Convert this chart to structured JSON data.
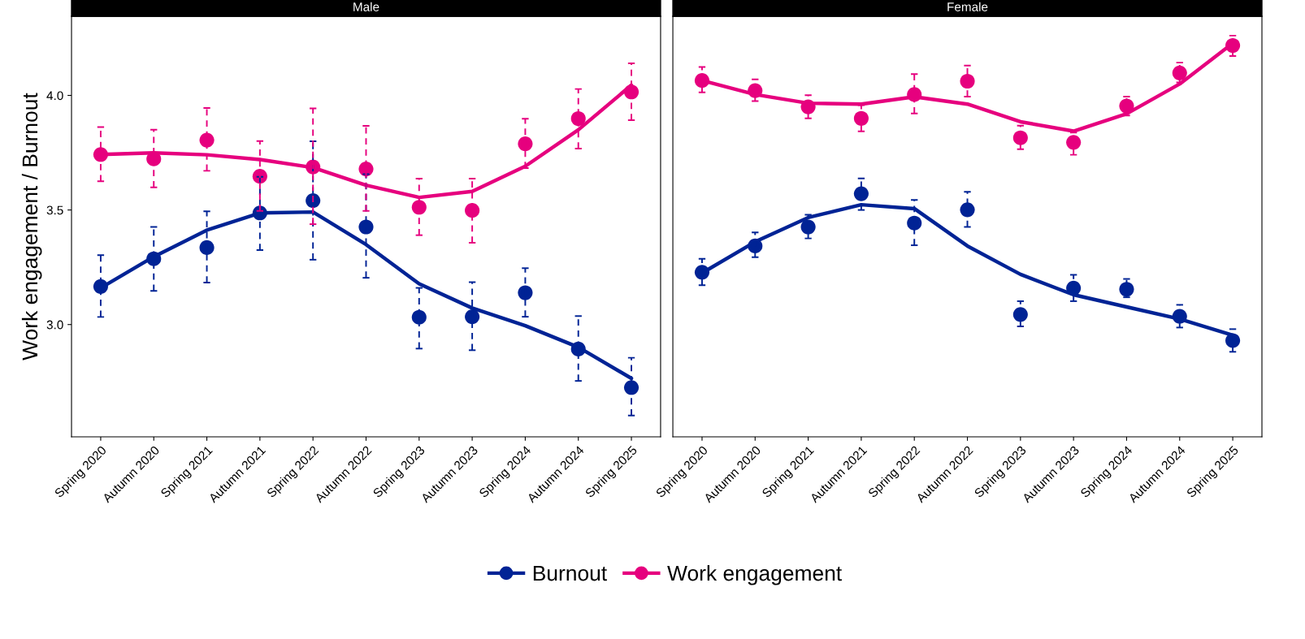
{
  "chart_data": [
    {
      "type": "scatter",
      "title": "Male",
      "ylabel": "Work engagement / Burnout",
      "legend": "bottom",
      "marker": "circle",
      "categories": [
        "Spring 2020",
        "Autumn 2020",
        "Spring 2021",
        "Autumn 2021",
        "Spring 2022",
        "Autumn 2022",
        "Spring 2023",
        "Autumn 2023",
        "Spring 2024",
        "Autumn 2024",
        "Spring 2025"
      ],
      "ylim": [
        2.51,
        4.345
      ],
      "yticks": [
        {
          "value": 3,
          "label": "3.0"
        },
        {
          "value": 3.5,
          "label": "3.5"
        },
        {
          "value": 4,
          "label": "4.0"
        }
      ],
      "series": [
        {
          "name": "Burnout",
          "color": "#002395",
          "line_style": "dashed",
          "values": [
            3.166,
            3.287,
            3.336,
            3.487,
            3.541,
            3.426,
            3.032,
            3.034,
            3.139,
            2.893,
            2.725
          ],
          "errors": [
            [
              3.033,
              3.303
            ],
            [
              3.147,
              3.426
            ],
            [
              3.183,
              3.494
            ],
            [
              3.325,
              3.645
            ],
            [
              3.283,
              3.8
            ],
            [
              3.204,
              3.656
            ],
            [
              2.895,
              3.16
            ],
            [
              2.888,
              3.185
            ],
            [
              3.034,
              3.246
            ],
            [
              2.754,
              3.037
            ],
            [
              2.603,
              2.855
            ]
          ]
        },
        {
          "name": "Work engagement",
          "color": "#e6007e",
          "line_style": "dashed",
          "values": [
            3.742,
            3.723,
            3.805,
            3.647,
            3.688,
            3.679,
            3.512,
            3.498,
            3.789,
            3.899,
            4.015
          ],
          "errors": [
            [
              3.625,
              3.862
            ],
            [
              3.599,
              3.85
            ],
            [
              3.671,
              3.945
            ],
            [
              3.496,
              3.801
            ],
            [
              3.438,
              3.943
            ],
            [
              3.496,
              3.867
            ],
            [
              3.39,
              3.637
            ],
            [
              3.357,
              3.637
            ],
            [
              3.683,
              3.898
            ],
            [
              3.768,
              4.028
            ],
            [
              3.892,
              4.14
            ]
          ]
        },
        {
          "type": "line",
          "marker": "none",
          "color": "#002395",
          "values": [
            3.16,
            3.296,
            3.412,
            3.487,
            3.491,
            3.349,
            3.178,
            3.072,
            2.995,
            2.901,
            2.765
          ]
        },
        {
          "type": "line",
          "marker": "none",
          "color": "#e6007e",
          "values": [
            3.742,
            3.749,
            3.741,
            3.72,
            3.685,
            3.608,
            3.555,
            3.581,
            3.691,
            3.85,
            4.045
          ]
        }
      ]
    },
    {
      "type": "scatter",
      "title": "Female",
      "tick_labels": "x",
      "marker": "circle",
      "categories": [
        "Spring 2020",
        "Autumn 2020",
        "Spring 2021",
        "Autumn 2021",
        "Spring 2022",
        "Autumn 2022",
        "Spring 2023",
        "Autumn 2023",
        "Spring 2024",
        "Autumn 2024",
        "Spring 2025"
      ],
      "ylim": [
        2.51,
        4.345
      ],
      "series": [
        {
          "color": "#002395",
          "line_style": "dashed",
          "values": [
            3.228,
            3.343,
            3.426,
            3.571,
            3.443,
            3.501,
            3.044,
            3.159,
            3.154,
            3.036,
            2.93
          ],
          "errors": [
            [
              3.172,
              3.287
            ],
            [
              3.294,
              3.402
            ],
            [
              3.376,
              3.479
            ],
            [
              3.5,
              3.638
            ],
            [
              3.346,
              3.544
            ],
            [
              3.426,
              3.579
            ],
            [
              2.992,
              3.102
            ],
            [
              3.102,
              3.217
            ],
            [
              3.119,
              3.199
            ],
            [
              2.987,
              3.086
            ],
            [
              2.881,
              2.98
            ]
          ]
        },
        {
          "color": "#e6007e",
          "line_style": "dashed",
          "values": [
            4.065,
            4.021,
            3.95,
            3.9,
            4.004,
            4.062,
            3.815,
            3.795,
            3.954,
            4.098,
            4.218
          ],
          "errors": [
            [
              4.013,
              4.124
            ],
            [
              3.975,
              4.07
            ],
            [
              3.9,
              4.001
            ],
            [
              3.843,
              3.957
            ],
            [
              3.921,
              4.093
            ],
            [
              3.995,
              4.13
            ],
            [
              3.765,
              3.868
            ],
            [
              3.741,
              3.838
            ],
            [
              3.912,
              3.995
            ],
            [
              4.057,
              4.143
            ],
            [
              4.172,
              4.261
            ]
          ]
        },
        {
          "type": "line",
          "marker": "none",
          "color": "#002395",
          "values": [
            3.225,
            3.361,
            3.467,
            3.523,
            3.506,
            3.343,
            3.219,
            3.13,
            3.077,
            3.024,
            2.953
          ]
        },
        {
          "type": "line",
          "marker": "none",
          "color": "#e6007e",
          "values": [
            4.065,
            4.004,
            3.966,
            3.962,
            3.994,
            3.962,
            3.885,
            3.844,
            3.92,
            4.05,
            4.228
          ]
        }
      ]
    }
  ]
}
